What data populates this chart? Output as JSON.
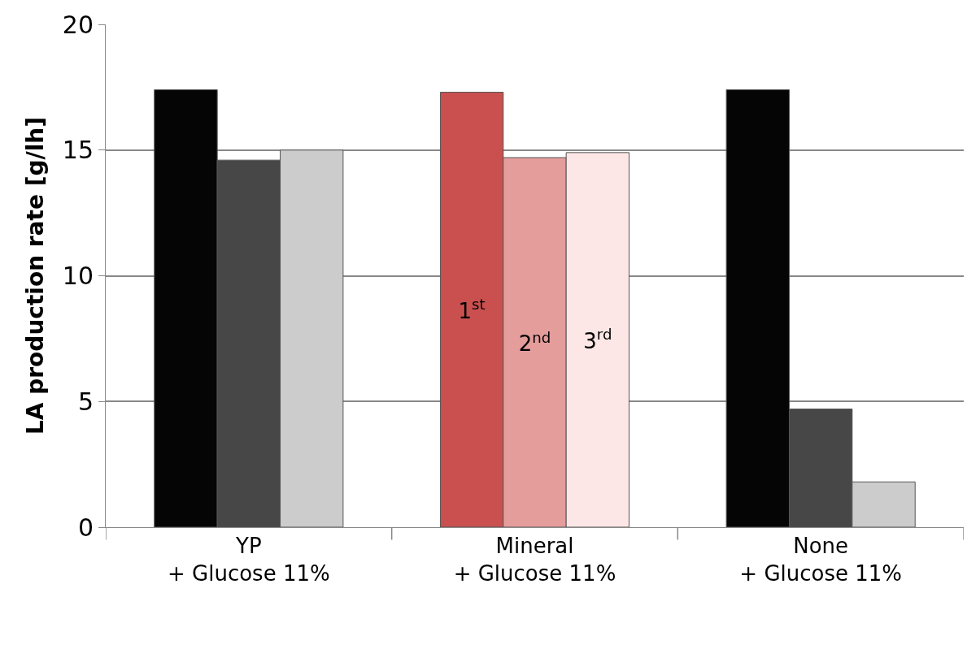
{
  "chart_data": {
    "type": "bar",
    "ylabel": "LA production rate [g/lh]",
    "categories": [
      "YP\n+ Glucose 11%",
      "Mineral\n+ Glucose 11%",
      "None\n+ Glucose 11%"
    ],
    "series": [
      {
        "name": "1$^{st}$",
        "colors": [
          "#050505",
          "#c9504f",
          "#050505"
        ],
        "values": [
          17.4,
          17.3,
          17.4
        ]
      },
      {
        "name": "2$^{nd}$",
        "colors": [
          "#474747",
          "#e59d9c",
          "#474747"
        ],
        "values": [
          14.6,
          14.7,
          4.7
        ]
      },
      {
        "name": "3$^{rd}$",
        "colors": [
          "#cccccc",
          "#fde6e6",
          "#cccccc"
        ],
        "values": [
          15.0,
          14.9,
          1.8
        ]
      }
    ],
    "ylim": [
      0,
      20
    ],
    "yticks": [
      0,
      5,
      10,
      15,
      20
    ],
    "grid": "y",
    "legend": false
  }
}
